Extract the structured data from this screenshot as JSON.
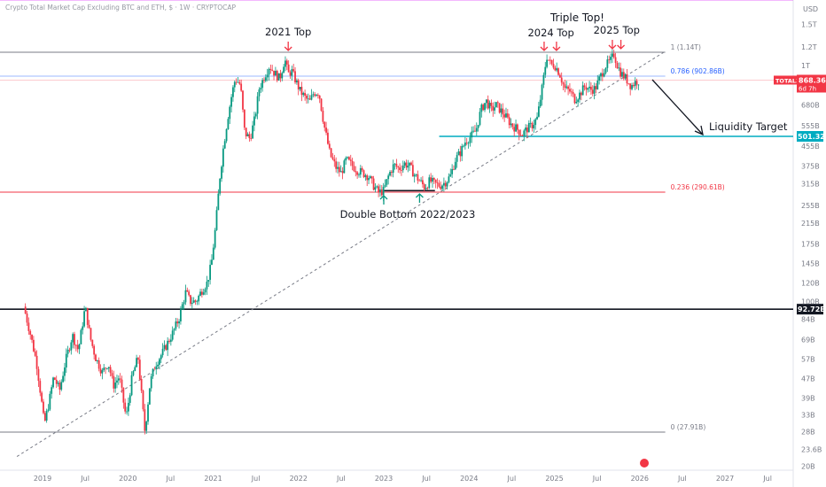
{
  "chart_data": {
    "type": "candlestick",
    "title": "Crypto Total Market Cap Excluding BTC and ETH, $ · 1W · CRYPTOCAP",
    "currency_label": "USD",
    "y_scale": "log",
    "ylim": [
      18,
      1900
    ],
    "y_ticks": [
      "1.5T",
      "1.2T",
      "1T",
      "680B",
      "555B",
      "455B",
      "375B",
      "315B",
      "255B",
      "215B",
      "175B",
      "145B",
      "120B",
      "100B",
      "84B",
      "69B",
      "57B",
      "47B",
      "39B",
      "33B",
      "28B",
      "23.6B",
      "20B"
    ],
    "y_tick_values": [
      1500,
      1200,
      1000,
      680,
      555,
      455,
      375,
      315,
      255,
      215,
      175,
      145,
      120,
      100,
      84,
      69,
      57,
      47,
      39,
      33,
      28,
      23.6,
      20
    ],
    "x_ticks": [
      "2019",
      "Jul",
      "2020",
      "Jul",
      "2021",
      "Jul",
      "2022",
      "Jul",
      "2023",
      "Jul",
      "2024",
      "Jul",
      "2025",
      "Jul",
      "2026",
      "Jul",
      "2027",
      "Jul"
    ],
    "x_tick_years": [
      2019.0,
      2019.5,
      2020.0,
      2020.5,
      2021.0,
      2021.5,
      2022.0,
      2022.5,
      2023.0,
      2023.5,
      2024.0,
      2024.5,
      2025.0,
      2025.5,
      2026.0,
      2026.5,
      2027.0,
      2027.5
    ],
    "price_path": [
      [
        2018.78,
        95
      ],
      [
        2018.86,
        72
      ],
      [
        2018.93,
        55
      ],
      [
        2018.98,
        40
      ],
      [
        2019.02,
        30
      ],
      [
        2019.08,
        38
      ],
      [
        2019.13,
        48
      ],
      [
        2019.2,
        42
      ],
      [
        2019.27,
        56
      ],
      [
        2019.35,
        72
      ],
      [
        2019.42,
        62
      ],
      [
        2019.5,
        95
      ],
      [
        2019.56,
        70
      ],
      [
        2019.62,
        58
      ],
      [
        2019.7,
        50
      ],
      [
        2019.77,
        55
      ],
      [
        2019.83,
        44
      ],
      [
        2019.9,
        48
      ],
      [
        2019.98,
        32
      ],
      [
        2020.05,
        48
      ],
      [
        2020.12,
        58
      ],
      [
        2020.2,
        28
      ],
      [
        2020.26,
        45
      ],
      [
        2020.32,
        54
      ],
      [
        2020.4,
        60
      ],
      [
        2020.46,
        66
      ],
      [
        2020.53,
        74
      ],
      [
        2020.6,
        85
      ],
      [
        2020.68,
        110
      ],
      [
        2020.73,
        100
      ],
      [
        2020.8,
        100
      ],
      [
        2020.87,
        112
      ],
      [
        2020.93,
        120
      ],
      [
        2020.98,
        145
      ],
      [
        2021.03,
        210
      ],
      [
        2021.08,
        340
      ],
      [
        2021.12,
        450
      ],
      [
        2021.17,
        600
      ],
      [
        2021.22,
        760
      ],
      [
        2021.26,
        880
      ],
      [
        2021.32,
        830
      ],
      [
        2021.37,
        520
      ],
      [
        2021.43,
        490
      ],
      [
        2021.49,
        600
      ],
      [
        2021.54,
        800
      ],
      [
        2021.6,
        900
      ],
      [
        2021.66,
        1000
      ],
      [
        2021.72,
        930
      ],
      [
        2021.78,
        880
      ],
      [
        2021.84,
        1070
      ],
      [
        2021.88,
        920
      ],
      [
        2021.92,
        950
      ],
      [
        2021.97,
        860
      ],
      [
        2022.02,
        780
      ],
      [
        2022.08,
        730
      ],
      [
        2022.13,
        700
      ],
      [
        2022.18,
        770
      ],
      [
        2022.24,
        770
      ],
      [
        2022.3,
        560
      ],
      [
        2022.37,
        420
      ],
      [
        2022.44,
        370
      ],
      [
        2022.5,
        350
      ],
      [
        2022.56,
        400
      ],
      [
        2022.62,
        380
      ],
      [
        2022.69,
        360
      ],
      [
        2022.76,
        350
      ],
      [
        2022.82,
        340
      ],
      [
        2022.88,
        310
      ],
      [
        2022.94,
        290
      ],
      [
        2023.0,
        295
      ],
      [
        2023.06,
        345
      ],
      [
        2023.12,
        380
      ],
      [
        2023.18,
        365
      ],
      [
        2023.24,
        385
      ],
      [
        2023.3,
        375
      ],
      [
        2023.36,
        345
      ],
      [
        2023.42,
        325
      ],
      [
        2023.48,
        305
      ],
      [
        2023.54,
        325
      ],
      [
        2023.6,
        315
      ],
      [
        2023.66,
        310
      ],
      [
        2023.72,
        320
      ],
      [
        2023.78,
        340
      ],
      [
        2023.84,
        400
      ],
      [
        2023.9,
        430
      ],
      [
        2023.96,
        480
      ],
      [
        2024.02,
        500
      ],
      [
        2024.08,
        530
      ],
      [
        2024.14,
        650
      ],
      [
        2024.2,
        710
      ],
      [
        2024.26,
        650
      ],
      [
        2024.32,
        680
      ],
      [
        2024.38,
        640
      ],
      [
        2024.44,
        600
      ],
      [
        2024.5,
        560
      ],
      [
        2024.56,
        540
      ],
      [
        2024.62,
        510
      ],
      [
        2024.68,
        540
      ],
      [
        2024.74,
        560
      ],
      [
        2024.8,
        600
      ],
      [
        2024.86,
        820
      ],
      [
        2024.91,
        1100
      ],
      [
        2024.96,
        1010
      ],
      [
        2025.0,
        1010
      ],
      [
        2025.06,
        930
      ],
      [
        2025.12,
        800
      ],
      [
        2025.18,
        780
      ],
      [
        2025.24,
        720
      ],
      [
        2025.3,
        760
      ],
      [
        2025.36,
        820
      ],
      [
        2025.42,
        790
      ],
      [
        2025.48,
        800
      ],
      [
        2025.54,
        900
      ],
      [
        2025.6,
        1000
      ],
      [
        2025.66,
        1050
      ],
      [
        2025.7,
        1120
      ],
      [
        2025.74,
        1000
      ],
      [
        2025.78,
        930
      ],
      [
        2025.84,
        880
      ],
      [
        2025.9,
        820
      ],
      [
        2025.96,
        860
      ],
      [
        2026.0,
        865
      ]
    ],
    "horizontal_levels": [
      {
        "value": 1900,
        "color": "#e040fb"
      },
      {
        "value": 1140,
        "color": "#787b86",
        "label": "1 (1.14T)"
      },
      {
        "value": 902.86,
        "color": "#2962ff",
        "label": "0.786 (902.86B)"
      },
      {
        "value": 290.61,
        "color": "#f23645",
        "label": "0.236 (290.61B)"
      },
      {
        "value": 27.91,
        "color": "#787b86",
        "label": "0 (27.91B)"
      },
      {
        "value": 92.72,
        "color": "#131722",
        "label": "92.72B",
        "bold": true
      },
      {
        "value": 501.32,
        "color": "#00acc1",
        "label": "501.32B",
        "from_year": 2023.65
      }
    ],
    "trendline": {
      "from": [
        2018.7,
        22
      ],
      "to": [
        2026.3,
        1150
      ]
    },
    "support_segment": {
      "from": [
        2023.0,
        295
      ],
      "to": [
        2023.6,
        295
      ]
    },
    "current": {
      "symbol": "TOTAL3",
      "price": "868.36B",
      "countdown": "6d 7h",
      "value": 868.36
    },
    "annotations": [
      {
        "text": "2021 Top",
        "year": 2021.88,
        "value": 1080
      },
      {
        "text": "2024 Top",
        "year": 2024.96,
        "value": 1100
      },
      {
        "text": "2025 Top",
        "year": 2025.73,
        "value": 1120
      },
      {
        "text": "Triple Top!",
        "color": "#ff6d00"
      },
      {
        "text": "Double Bottom 2022/2023"
      },
      {
        "text": "Liquidity Target",
        "color": "#00acc1"
      }
    ]
  }
}
